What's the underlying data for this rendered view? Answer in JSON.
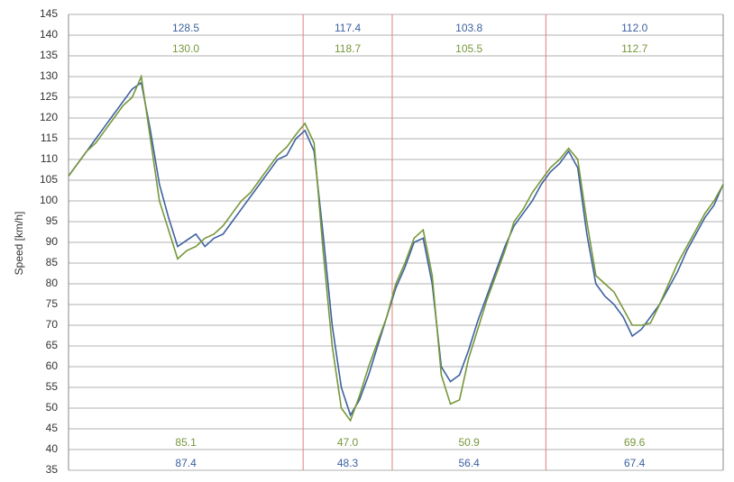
{
  "chart_data": {
    "type": "line",
    "y_label": "Speed [km/h]",
    "ylim": [
      35,
      145
    ],
    "yticks": [
      35,
      40,
      45,
      50,
      55,
      60,
      65,
      70,
      75,
      80,
      85,
      90,
      95,
      100,
      105,
      110,
      115,
      120,
      125,
      130,
      135,
      140,
      145
    ],
    "grid": true,
    "xlim": [
      0,
      72
    ],
    "dividers": [
      25.8,
      35.6,
      52.5
    ],
    "divider_color": "#e08080",
    "series": [
      {
        "color": "#3d61a0",
        "values": [
          106,
          109,
          112,
          115,
          118,
          121,
          124,
          127,
          128.5,
          117,
          104,
          96,
          89,
          90.5,
          92,
          89,
          91,
          92,
          95,
          98,
          101,
          104,
          107,
          110,
          111,
          115,
          117,
          112,
          92,
          70,
          55,
          48.3,
          52,
          58,
          65,
          72,
          79,
          84,
          90,
          91,
          80,
          60,
          56.4,
          58,
          64,
          71,
          77,
          83,
          89,
          94,
          97,
          100,
          104,
          107,
          109,
          112,
          108,
          92,
          80,
          77,
          75,
          72,
          67.4,
          69,
          72,
          75,
          79,
          83,
          88,
          92,
          96,
          99,
          104
        ],
        "max_labels": [
          128.5,
          117.4,
          103.8,
          {
            "value": 112,
            "label": "112.0"
          }
        ],
        "min_labels": [
          87.4,
          48.3,
          56.4,
          67.4
        ]
      },
      {
        "color": "#76973a",
        "values": [
          106,
          109,
          112,
          114,
          117,
          120,
          123,
          125,
          130,
          115,
          100,
          93,
          86,
          88,
          89,
          91,
          92,
          94,
          97,
          100,
          102,
          105,
          108,
          111,
          113,
          116,
          118.7,
          114,
          88,
          65,
          50,
          47,
          53,
          60,
          66,
          72,
          80,
          85,
          91,
          93,
          82,
          58,
          51,
          52,
          62,
          69,
          76,
          82,
          88,
          95,
          98,
          102,
          105,
          108,
          110,
          112.7,
          110,
          95,
          82,
          80,
          78,
          74,
          70,
          70,
          70.5,
          75,
          80,
          85,
          89,
          93,
          97,
          100,
          104
        ],
        "max_labels": [
          {
            "value": 130,
            "label": "130.0"
          },
          118.7,
          105.5,
          112.7
        ],
        "min_labels": [
          85.1,
          {
            "value": 47,
            "label": "47.0"
          },
          50.9,
          69.6
        ]
      }
    ]
  }
}
